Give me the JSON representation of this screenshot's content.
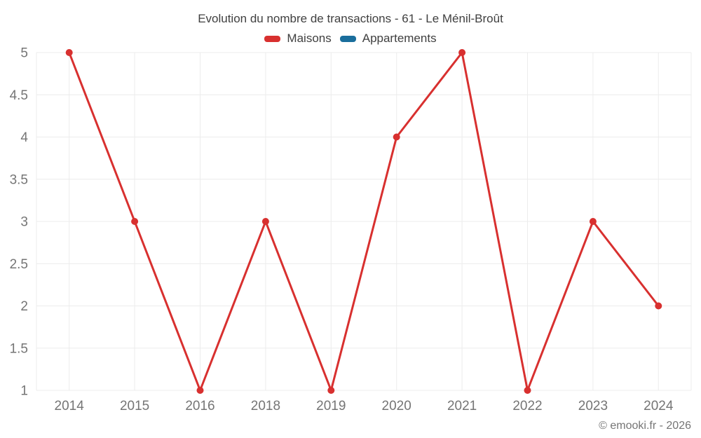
{
  "header": {
    "title": "Evolution du nombre de transactions - 61 - Le Ménil-Broût"
  },
  "legend": [
    {
      "label": "Maisons",
      "color": "#d8302f"
    },
    {
      "label": "Appartements",
      "color": "#1a6e9c"
    }
  ],
  "footer": {
    "credit": "© emooki.fr - 2026"
  },
  "colors": {
    "maisons": "#d8302f",
    "appartements": "#1a6e9c",
    "grid": "#ececec",
    "axis_text": "#757575",
    "title_text": "#404040"
  },
  "chart_data": {
    "type": "line",
    "title": "Evolution du nombre de transactions - 61 - Le Ménil-Broût",
    "categories": [
      "2014",
      "2015",
      "2016",
      "2018",
      "2019",
      "2020",
      "2021",
      "2022",
      "2023",
      "2024"
    ],
    "series": [
      {
        "name": "Maisons",
        "color": "#d8302f",
        "values": [
          5,
          3,
          1,
          3,
          1,
          4,
          5,
          1,
          3,
          2
        ]
      },
      {
        "name": "Appartements",
        "color": "#1a6e9c",
        "values": []
      }
    ],
    "xlabel": "",
    "ylabel": "",
    "ylim": [
      1,
      5
    ],
    "ytick_step": 0.5,
    "grid": true,
    "legend_position": "top",
    "marker_radius": 5,
    "line_width": 3
  }
}
